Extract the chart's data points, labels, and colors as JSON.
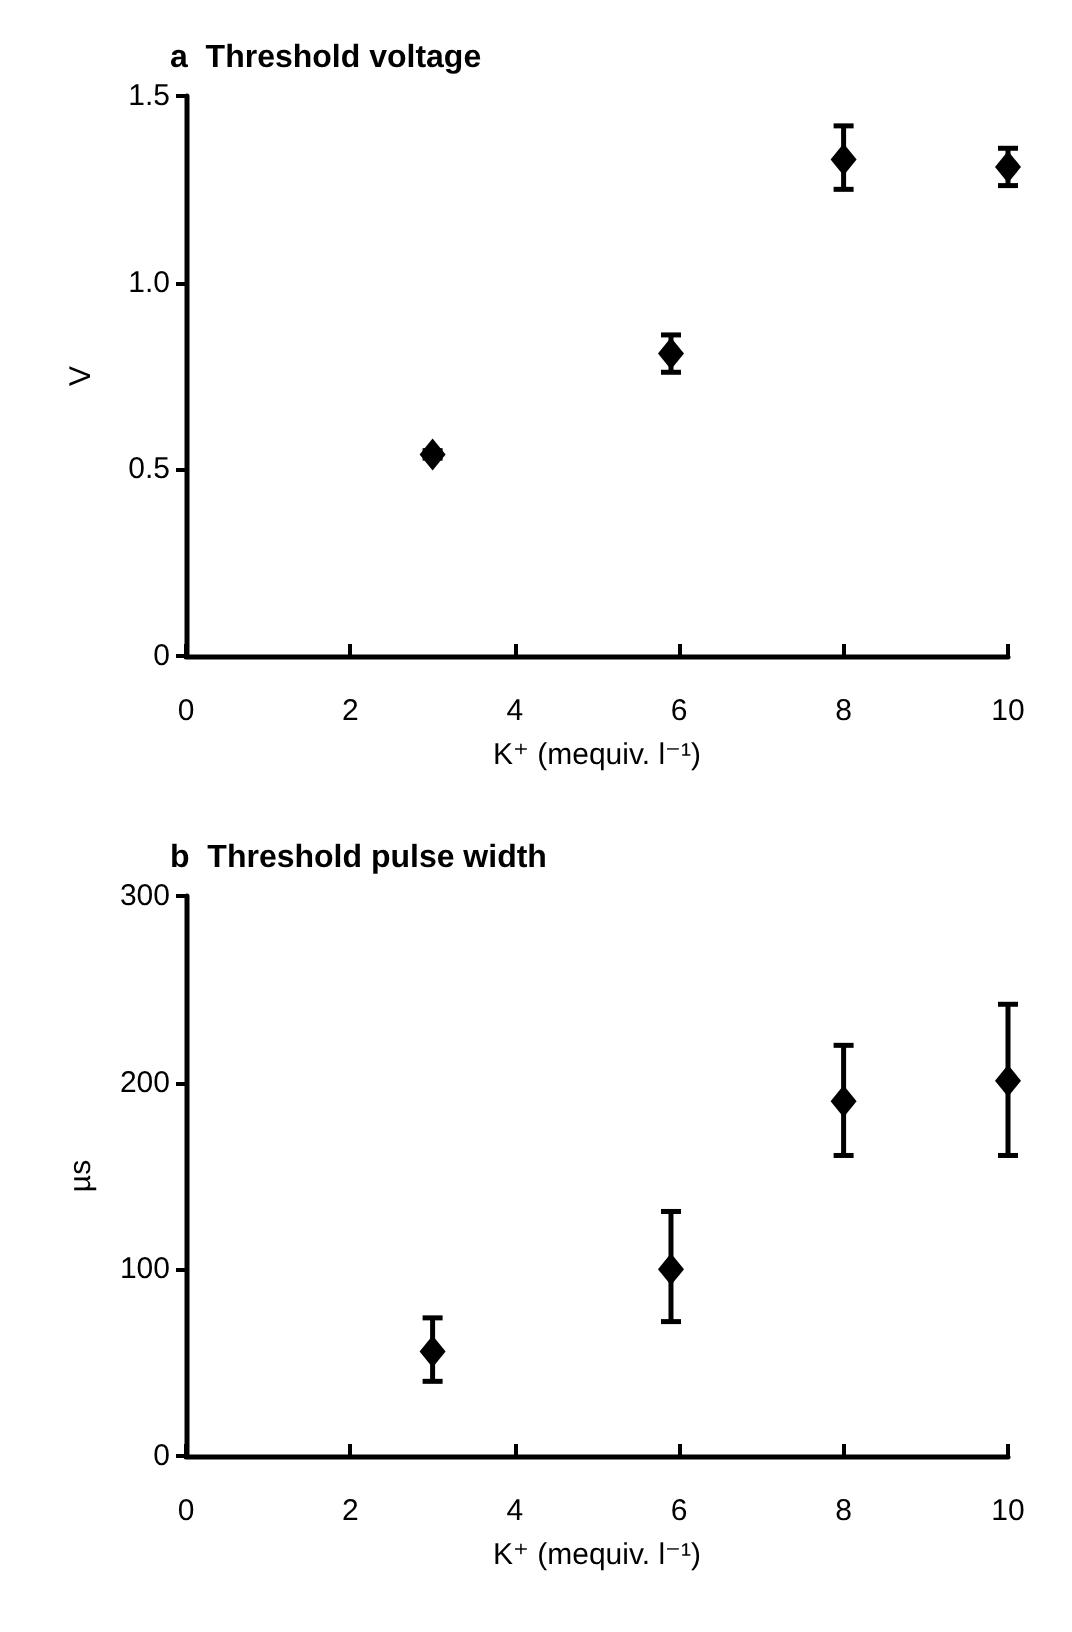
{
  "chart_data": [
    {
      "type": "scatter",
      "title": "a  Threshold voltage",
      "xlabel": "K⁺ (mequiv. l⁻¹)",
      "ylabel": "V",
      "marker": "diamond",
      "grid": false,
      "x": [
        3,
        5.9,
        8,
        10
      ],
      "series": [
        {
          "color": "#000000",
          "values": [
            0.54,
            0.81,
            1.33,
            1.31
          ],
          "errors": [
            [
              0.53,
              0.55
            ],
            [
              0.76,
              0.86
            ],
            [
              1.25,
              1.42
            ],
            [
              1.26,
              1.36
            ]
          ]
        }
      ],
      "xlim": [
        0,
        10
      ],
      "xticks": [
        0,
        2,
        4,
        6,
        8,
        10
      ],
      "ylim": [
        0,
        1.5
      ],
      "yticks": [
        0,
        {
          "value": 0.5,
          "label": "0.5"
        },
        {
          "value": 1,
          "label": "1.0"
        },
        {
          "value": 1.5,
          "label": "1.5"
        }
      ]
    },
    {
      "type": "scatter",
      "title": "b  Threshold pulse width",
      "xlabel": "K⁺ (mequiv. l⁻¹)",
      "ylabel": "µs",
      "marker": "diamond",
      "grid": false,
      "x": [
        3,
        5.9,
        8,
        10
      ],
      "series": [
        {
          "color": "#000000",
          "values": [
            56,
            100,
            190,
            201
          ],
          "errors": [
            [
              40,
              74
            ],
            [
              72,
              131
            ],
            [
              161,
              220
            ],
            [
              161,
              242
            ]
          ]
        }
      ],
      "xlim": [
        0,
        10
      ],
      "xticks": [
        0,
        2,
        4,
        6,
        8,
        10
      ],
      "ylim": [
        0,
        300
      ],
      "yticks": [
        0,
        100,
        200,
        300
      ]
    }
  ]
}
